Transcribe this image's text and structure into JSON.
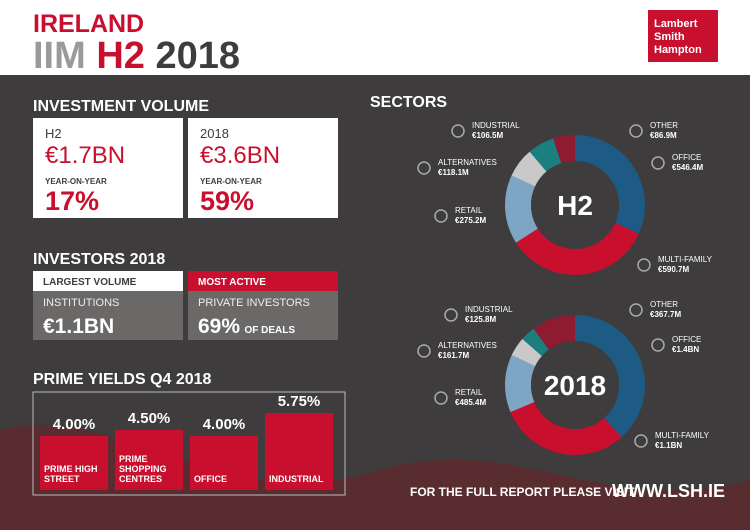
{
  "header": {
    "title": "IRELAND",
    "subtitle": [
      "IIM",
      "H2",
      "2018"
    ]
  },
  "logo": [
    "Lambert",
    "Smith",
    "Hampton"
  ],
  "investment_volume": {
    "title": "INVESTMENT VOLUME",
    "cards": [
      {
        "period": "H2",
        "value": "€1.7BN",
        "change_label": "YEAR-ON-YEAR",
        "change": "17%"
      },
      {
        "period": "2018",
        "value": "€3.6BN",
        "change_label": "YEAR-ON-YEAR",
        "change": "59%"
      }
    ]
  },
  "investors": {
    "title": "INVESTORS 2018",
    "columns": [
      {
        "header": "LARGEST VOLUME",
        "label": "INSTITUTIONS",
        "value": "€1.1BN"
      },
      {
        "header": "MOST ACTIVE",
        "label": "PRIVATE INVESTORS",
        "value": "69%",
        "value_suffix": "OF DEALS"
      }
    ]
  },
  "prime_yields": {
    "type": "bar",
    "title": "PRIME YIELDS Q4 2018",
    "categories": [
      "PRIME HIGH STREET",
      "PRIME SHOPPING CENTRES",
      "OFFICE",
      "INDUSTRIAL"
    ],
    "values": [
      4.0,
      4.5,
      4.0,
      5.75
    ],
    "value_labels": [
      "4.00%",
      "4.50%",
      "4.00%",
      "5.75%"
    ],
    "color": "#c8102e"
  },
  "sectors": {
    "title": "SECTORS",
    "charts": [
      {
        "type": "donut",
        "center_label": "H2",
        "categories": [
          "OFFICE",
          "MULTI-FAMILY",
          "RETAIL",
          "ALTERNATIVES",
          "INDUSTRIAL",
          "OTHER"
        ],
        "values": [
          546.4,
          590.7,
          275.2,
          118.1,
          106.5,
          86.9
        ],
        "value_labels": [
          "€546.4M",
          "€590.7M",
          "€275.2M",
          "€118.1M",
          "€106.5M",
          "€86.9M"
        ],
        "colors": [
          "#1d5b85",
          "#c8102e",
          "#7ea5c3",
          "#c9c9c9",
          "#1b7f80",
          "#8e1b30"
        ]
      },
      {
        "type": "donut",
        "center_label": "2018",
        "categories": [
          "OFFICE",
          "MULTI-FAMILY",
          "RETAIL",
          "ALTERNATIVES",
          "INDUSTRIAL",
          "OTHER"
        ],
        "values": [
          1400,
          1100,
          485.4,
          161.7,
          125.8,
          367.7
        ],
        "value_labels": [
          "€1.4BN",
          "€1.1BN",
          "€485.4M",
          "€161.7M",
          "€125.8M",
          "€367.7M"
        ],
        "colors": [
          "#1d5b85",
          "#c8102e",
          "#7ea5c3",
          "#c9c9c9",
          "#1b7f80",
          "#8e1b30"
        ]
      }
    ]
  },
  "footer": {
    "text": "FOR THE FULL REPORT PLEASE VISIT",
    "link": "WWW.LSH.IE"
  }
}
